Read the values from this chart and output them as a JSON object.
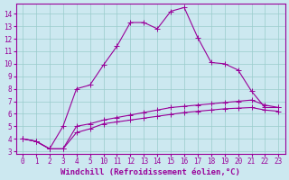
{
  "xlabel": "Windchill (Refroidissement éolien,°C)",
  "bg_color": "#cce8f0",
  "line_color": "#990099",
  "grid_color": "#99cccc",
  "x_labels": [
    "0",
    "1",
    "2",
    "3",
    "4",
    "5",
    "10",
    "11",
    "12",
    "13",
    "14",
    "15",
    "16",
    "17",
    "18",
    "19",
    "20",
    "21",
    "22",
    "23"
  ],
  "line1_y": [
    4.0,
    3.8,
    3.2,
    5.0,
    8.0,
    8.3,
    9.9,
    11.4,
    13.3,
    13.3,
    12.8,
    14.2,
    14.5,
    12.1,
    10.1,
    10.0,
    9.5,
    7.8,
    6.5,
    6.5
  ],
  "line2_y": [
    4.0,
    3.8,
    3.2,
    3.2,
    5.0,
    5.2,
    5.5,
    5.7,
    5.9,
    6.1,
    6.3,
    6.5,
    6.6,
    6.7,
    6.8,
    6.9,
    7.0,
    7.1,
    6.7,
    6.5
  ],
  "line3_y": [
    4.0,
    3.8,
    3.2,
    3.2,
    4.5,
    4.8,
    5.2,
    5.35,
    5.5,
    5.65,
    5.8,
    5.95,
    6.1,
    6.2,
    6.3,
    6.4,
    6.45,
    6.5,
    6.3,
    6.2
  ],
  "ylim_min": 2.8,
  "ylim_max": 14.8,
  "yticks": [
    3,
    4,
    5,
    6,
    7,
    8,
    9,
    10,
    11,
    12,
    13,
    14
  ],
  "marker": "+",
  "marker_size": 4,
  "linewidth": 0.8,
  "tick_fontsize": 5.5,
  "xlabel_fontsize": 6.5
}
